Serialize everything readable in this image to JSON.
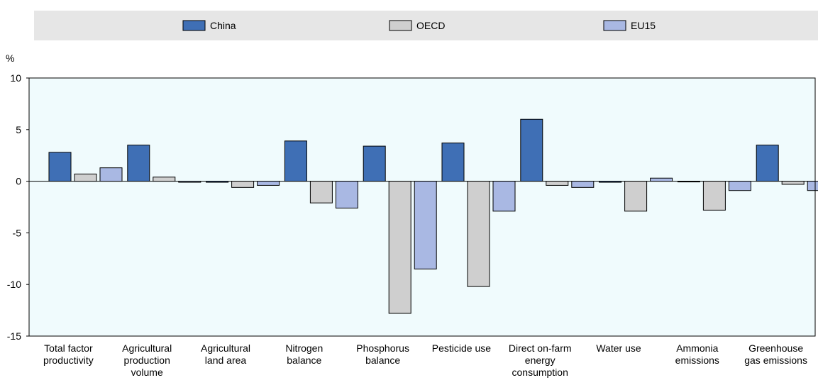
{
  "chart_data": {
    "type": "bar",
    "ylabel": "%",
    "ylim": [
      -15,
      10
    ],
    "yticks": [
      10,
      5,
      0,
      -5,
      -10,
      -15
    ],
    "grid": false,
    "legend_position": "top",
    "categories": [
      [
        "Total factor",
        "productivity"
      ],
      [
        "Agricultural",
        "production",
        "volume"
      ],
      [
        "Agricultural",
        "land area"
      ],
      [
        "Nitrogen",
        "balance"
      ],
      [
        "Phosphorus",
        "balance"
      ],
      [
        "Pesticide use"
      ],
      [
        "Direct on-farm",
        "energy",
        "consumption"
      ],
      [
        "Water use"
      ],
      [
        "Ammonia",
        "emissions"
      ],
      [
        "Greenhouse",
        "gas emissions"
      ]
    ],
    "series": [
      {
        "name": "China",
        "color": "#3f6fb5",
        "values": [
          2.8,
          3.5,
          -0.1,
          3.9,
          3.4,
          3.7,
          6.0,
          -0.1,
          0.0,
          3.5
        ]
      },
      {
        "name": "OECD",
        "color": "#cfcfcf",
        "values": [
          0.7,
          0.4,
          -0.6,
          -2.1,
          -12.8,
          -10.2,
          -0.4,
          -2.9,
          -2.8,
          -0.3
        ]
      },
      {
        "name": "EU15",
        "color": "#a9b8e3",
        "values": [
          1.3,
          -0.1,
          -0.4,
          -2.6,
          -8.5,
          -2.9,
          -0.6,
          0.3,
          -0.9,
          -0.9
        ]
      }
    ],
    "colors": {
      "plot_background": "#f0fbfd",
      "legend_background": "#e6e6e6"
    }
  }
}
